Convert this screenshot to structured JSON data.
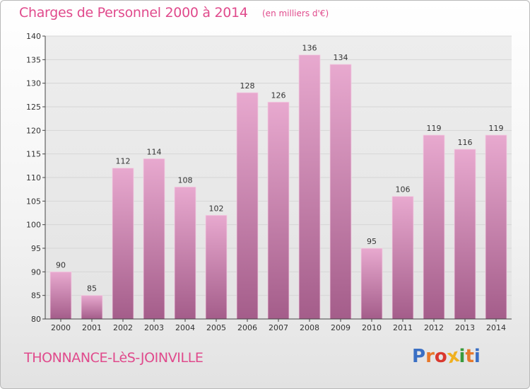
{
  "title": "Charges de Personnel 2000 à 2014",
  "subtitle": "(en milliers d'€)",
  "location": "THONNANCE-LèS-JOINVILLE",
  "logo": {
    "text": "Proxiti",
    "letter_colors": [
      "#3a6fc4",
      "#e8782a",
      "#d9382e",
      "#f0b020",
      "#3a9a3c",
      "#e8782a",
      "#3a6fc4"
    ]
  },
  "colors": {
    "accent": "#e04a8c",
    "bar_top": "#e8a9cf",
    "bar_bottom": "#a45d8a",
    "grid": "#d6d6d6"
  },
  "chart_data": {
    "type": "bar",
    "title": "Charges de Personnel 2000 à 2014",
    "subtitle": "(en milliers d'€)",
    "categories": [
      "2000",
      "2001",
      "2002",
      "2003",
      "2004",
      "2005",
      "2006",
      "2007",
      "2008",
      "2009",
      "2010",
      "2011",
      "2012",
      "2013",
      "2014"
    ],
    "values": [
      90,
      85,
      112,
      114,
      108,
      102,
      128,
      126,
      136,
      134,
      95,
      106,
      119,
      116,
      119
    ],
    "ylim": [
      80,
      140
    ],
    "yticks": [
      80,
      85,
      90,
      95,
      100,
      105,
      110,
      115,
      120,
      125,
      130,
      135,
      140
    ],
    "grid": true,
    "data_labels": true
  }
}
